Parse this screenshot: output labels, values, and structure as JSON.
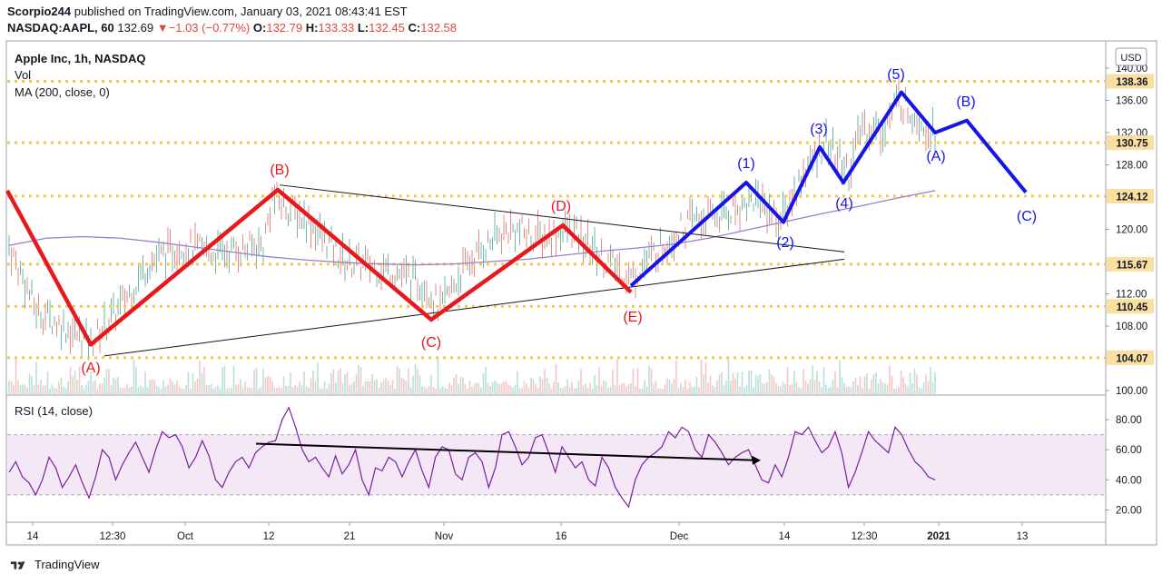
{
  "header": {
    "author": "Scorpio244",
    "published_text": "published on TradingView.com, January 03, 2021 08:43:41 EST",
    "symbol": "NASDAQ:AAPL, 60",
    "last": "132.69",
    "change": "−1.03 (−0.77%)",
    "o_label": "O:",
    "o_val": "132.79",
    "h_label": "H:",
    "h_val": "133.33",
    "l_label": "L:",
    "l_val": "132.45",
    "c_label": "C:",
    "c_val": "132.58"
  },
  "legend": {
    "title": "Apple Inc, 1h, NASDAQ",
    "vol": "Vol",
    "ma": "MA (200, close, 0)",
    "rsi": "RSI (14, close)",
    "currency": "USD"
  },
  "footer": {
    "brand": "TradingView"
  },
  "colors": {
    "red_wave": "#e8191d",
    "blue_wave": "#1515e8",
    "ma": "#9a7fd1",
    "rsi": "#7b1fa2",
    "level": "#f2c94c"
  },
  "chart_data": [
    {
      "type": "line",
      "panel": "price",
      "y_axis": {
        "ticks": [
          100,
          104,
          108,
          112,
          116,
          120,
          124,
          128,
          132,
          136,
          140
        ],
        "tick_labels": [
          "100.00",
          "104.00",
          "108.00",
          "112.00",
          "116.00",
          "120.00",
          "124.00",
          "128.00",
          "132.00",
          "136.00",
          "140.00"
        ],
        "ylim": [
          99.3,
          141
        ]
      },
      "x_axis": {
        "tick_labels": [
          "14",
          "12:30",
          "Oct",
          "12",
          "21",
          "Nov",
          "16",
          "Dec",
          "14",
          "12:30",
          "2021",
          "13"
        ]
      },
      "levels": [
        {
          "label": "138.36",
          "value": 138.36
        },
        {
          "label": "130.75",
          "value": 130.75
        },
        {
          "label": "124.12",
          "value": 124.12
        },
        {
          "label": "115.67",
          "value": 115.67
        },
        {
          "label": "110.45",
          "value": 110.45
        },
        {
          "label": "104.07",
          "value": 104.07
        }
      ],
      "red_wave": {
        "points": [
          [
            0,
            124.8
          ],
          [
            1,
            105.7
          ],
          [
            2,
            124.9
          ],
          [
            3,
            108.8
          ],
          [
            4,
            120.5
          ],
          [
            5,
            112.2
          ]
        ],
        "labels": [
          "(A)",
          "(B)",
          "(C)",
          "(D)",
          "(E)"
        ]
      },
      "blue_wave": {
        "points": [
          [
            0,
            113
          ],
          [
            1,
            125.8
          ],
          [
            2,
            120.9
          ],
          [
            3,
            130.2
          ],
          [
            4,
            125.8
          ],
          [
            5,
            137.0
          ],
          [
            6,
            132
          ],
          [
            7,
            133.5
          ],
          [
            8,
            124.6
          ]
        ],
        "labels": [
          "(1)",
          "(2)",
          "(3)",
          "(4)",
          "(5)",
          "(A)",
          "(B)",
          "(C)"
        ]
      },
      "triangle_upper": [
        [
          0,
          125.5
        ],
        [
          1,
          117.2
        ]
      ],
      "triangle_lower": [
        [
          0,
          104.3
        ],
        [
          1,
          116.3
        ]
      ],
      "ma_series": [
        118,
        118.9,
        119.1,
        118.9,
        118.4,
        117.8,
        117.2,
        116.6,
        116.2,
        115.9,
        115.7,
        115.6,
        115.7,
        116,
        116.3,
        116.8,
        117.3,
        117.7,
        118.2,
        119,
        120,
        121,
        122,
        122.9,
        123.9,
        124.8
      ]
    },
    {
      "type": "line",
      "panel": "rsi",
      "y_axis": {
        "ticks": [
          20,
          40,
          60,
          80
        ],
        "tick_labels": [
          "20.00",
          "40.00",
          "60.00",
          "80.00"
        ],
        "band": [
          30,
          70
        ]
      },
      "divergence": [
        [
          0,
          64
        ],
        [
          1,
          53
        ]
      ],
      "series": [
        {
          "name": "RSI (14, close)",
          "values": [
            45,
            52,
            42,
            38,
            30,
            40,
            55,
            48,
            35,
            42,
            50,
            38,
            28,
            42,
            60,
            55,
            40,
            50,
            58,
            65,
            55,
            45,
            60,
            72,
            68,
            70,
            62,
            48,
            55,
            66,
            56,
            40,
            35,
            45,
            52,
            55,
            48,
            58,
            62,
            65,
            66,
            80,
            88,
            75,
            60,
            52,
            55,
            48,
            42,
            56,
            44,
            50,
            60,
            40,
            30,
            48,
            46,
            55,
            52,
            42,
            52,
            60,
            46,
            35,
            55,
            62,
            60,
            44,
            40,
            55,
            58,
            52,
            35,
            48,
            70,
            72,
            62,
            50,
            55,
            68,
            70,
            58,
            45,
            62,
            55,
            48,
            52,
            40,
            36,
            55,
            48,
            35,
            28,
            22,
            40,
            50,
            55,
            58,
            62,
            72,
            68,
            75,
            72,
            60,
            55,
            70,
            65,
            58,
            50,
            55,
            58,
            60,
            50,
            40,
            38,
            50,
            42,
            55,
            72,
            70,
            75,
            66,
            58,
            62,
            72,
            58,
            35,
            45,
            58,
            72,
            66,
            62,
            58,
            75,
            70,
            60,
            52,
            48,
            42,
            40
          ]
        }
      ]
    }
  ]
}
